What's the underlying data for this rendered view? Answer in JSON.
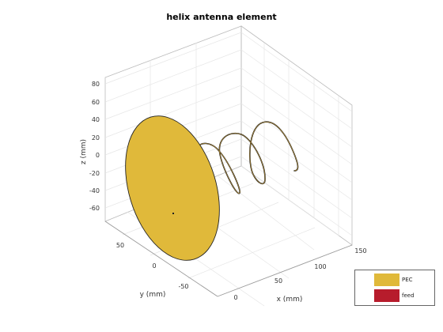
{
  "figure": {
    "title": "helix antenna element",
    "axes": {
      "x": {
        "label": "x (mm)",
        "ticks": [
          "0",
          "50",
          "100",
          "150"
        ]
      },
      "y": {
        "label": "y (mm)",
        "ticks": [
          "50",
          "0",
          "-50"
        ]
      },
      "z": {
        "label": "z (mm)",
        "ticks": [
          "80",
          "60",
          "40",
          "20",
          "0",
          "-20",
          "-40",
          "-60"
        ]
      }
    },
    "legend": [
      {
        "label": "PEC",
        "color": "#e0b93a"
      },
      {
        "label": "feed",
        "color": "#b71c2c"
      }
    ],
    "colors": {
      "ground_plane": "#e0b93a",
      "helix": "#1a1a1a",
      "feed": "#b71c2c"
    }
  }
}
